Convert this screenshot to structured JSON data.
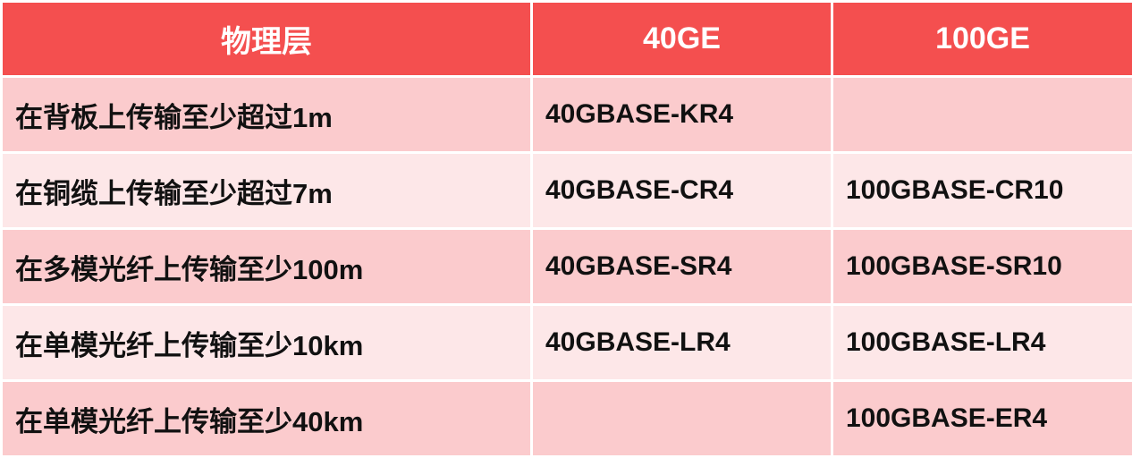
{
  "header": {
    "col1": "物理层",
    "col2": "40GE",
    "col3": "100GE"
  },
  "rows": [
    {
      "layer": "在背板上传输至少超过1m",
      "ge40": "40GBASE-KR4",
      "ge100": ""
    },
    {
      "layer": "在铜缆上传输至少超过7m",
      "ge40": "40GBASE-CR4",
      "ge100": "100GBASE-CR10"
    },
    {
      "layer": "在多模光纤上传输至少100m",
      "ge40": "40GBASE-SR4",
      "ge100": "100GBASE-SR10"
    },
    {
      "layer": "在单模光纤上传输至少10km",
      "ge40": "40GBASE-LR4",
      "ge100": "100GBASE-LR4"
    },
    {
      "layer": "在单模光纤上传输至少40km",
      "ge40": "",
      "ge100": "100GBASE-ER4"
    }
  ],
  "colors": {
    "header_bg": "#f44f4f",
    "row_odd_bg": "#fbcbcd",
    "row_even_bg": "#fde7e8",
    "header_text": "#ffffff"
  }
}
